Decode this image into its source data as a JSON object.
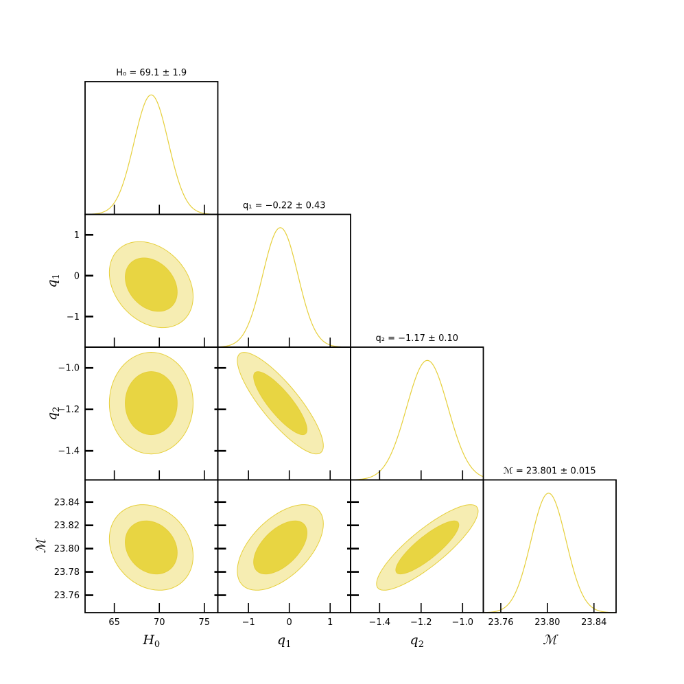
{
  "chart_data": {
    "type": "corner",
    "parameters": [
      {
        "key": "H0",
        "label_main": "H",
        "label_sub": "0",
        "title": "H₀ = 69.1 ± 1.9",
        "range": [
          61.75,
          76.5
        ],
        "ticks": [
          65,
          70,
          75
        ],
        "tick_labels": [
          "65",
          "70",
          "75"
        ],
        "mean": 69.1,
        "sigma": 1.9
      },
      {
        "key": "q1",
        "label_main": "q",
        "label_sub": "1",
        "title": "q₁ = −0.22 ± 0.43",
        "range": [
          -1.75,
          1.5
        ],
        "ticks": [
          -1,
          0,
          1
        ],
        "tick_labels": [
          "−1",
          "0",
          "1"
        ],
        "mean": -0.22,
        "sigma": 0.43
      },
      {
        "key": "q2",
        "label_main": "q",
        "label_sub": "2",
        "title": "q₂ = −1.17 ± 0.10",
        "range": [
          -1.54,
          -0.9
        ],
        "ticks": [
          -1.4,
          -1.2,
          -1.0
        ],
        "tick_labels": [
          "−1.4",
          "−1.2",
          "−1.0"
        ],
        "y_tick_labels": [
          "−1.4",
          "−1.2",
          "−1.0"
        ],
        "mean": -1.17,
        "sigma": 0.1
      },
      {
        "key": "M",
        "label_main": "ℳ",
        "label_sub": "",
        "title": "ℳ = 23.801 ± 0.015",
        "range": [
          23.745,
          23.859
        ],
        "ticks": [
          23.76,
          23.8,
          23.84
        ],
        "tick_labels": [
          "23.76",
          "23.80",
          "23.84"
        ],
        "y_ticks": [
          23.76,
          23.78,
          23.8,
          23.82,
          23.84
        ],
        "y_tick_labels": [
          "23.76",
          "23.78",
          "23.80",
          "23.82",
          "23.84"
        ],
        "mean": 23.801,
        "sigma": 0.015
      }
    ],
    "correlations": {
      "q1-H0": -0.28,
      "q2-H0": 0.0,
      "q2-q1": -0.84,
      "M-H0": -0.2,
      "M-q1": 0.55,
      "M-q2": 0.85
    },
    "contour_levels": [
      "68%",
      "95%"
    ],
    "colors": {
      "inner": "#e8d542",
      "outer": "#f6edb2",
      "edge": "#e6cf3a",
      "line": "#e6cf3a",
      "frame": "#000000"
    },
    "grid": false
  }
}
